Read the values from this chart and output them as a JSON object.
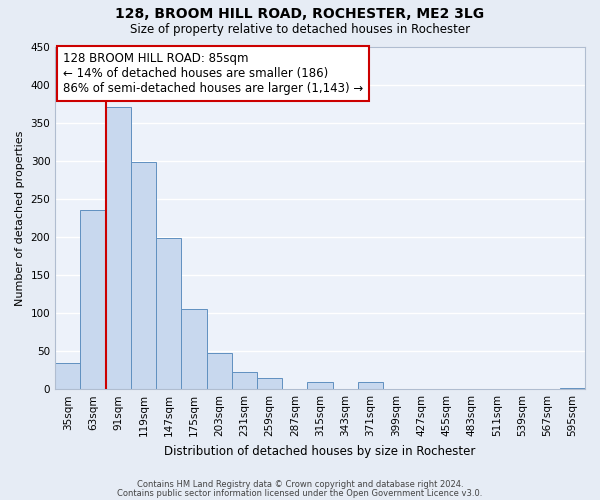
{
  "title": "128, BROOM HILL ROAD, ROCHESTER, ME2 3LG",
  "subtitle": "Size of property relative to detached houses in Rochester",
  "xlabel": "Distribution of detached houses by size in Rochester",
  "ylabel": "Number of detached properties",
  "bar_labels": [
    "35sqm",
    "63sqm",
    "91sqm",
    "119sqm",
    "147sqm",
    "175sqm",
    "203sqm",
    "231sqm",
    "259sqm",
    "287sqm",
    "315sqm",
    "343sqm",
    "371sqm",
    "399sqm",
    "427sqm",
    "455sqm",
    "483sqm",
    "511sqm",
    "539sqm",
    "567sqm",
    "595sqm"
  ],
  "bar_values": [
    35,
    235,
    370,
    298,
    198,
    105,
    47,
    22,
    15,
    0,
    10,
    0,
    9,
    0,
    0,
    0,
    0,
    0,
    0,
    0,
    2
  ],
  "bar_color": "#c8d8ee",
  "bar_edge_color": "#6090c0",
  "vline_x": 1.5,
  "vline_color": "#cc0000",
  "annotation_title": "128 BROOM HILL ROAD: 85sqm",
  "annotation_line1": "← 14% of detached houses are smaller (186)",
  "annotation_line2": "86% of semi-detached houses are larger (1,143) →",
  "annotation_border_color": "#cc0000",
  "ylim": [
    0,
    450
  ],
  "yticks": [
    0,
    50,
    100,
    150,
    200,
    250,
    300,
    350,
    400,
    450
  ],
  "footer1": "Contains HM Land Registry data © Crown copyright and database right 2024.",
  "footer2": "Contains public sector information licensed under the Open Government Licence v3.0.",
  "bg_color": "#e6ecf5",
  "plot_bg_color": "#edf2fa",
  "grid_color": "#ffffff",
  "title_fontsize": 10,
  "subtitle_fontsize": 8.5,
  "ylabel_fontsize": 8,
  "xlabel_fontsize": 8.5,
  "tick_fontsize": 7.5,
  "footer_fontsize": 6.0
}
